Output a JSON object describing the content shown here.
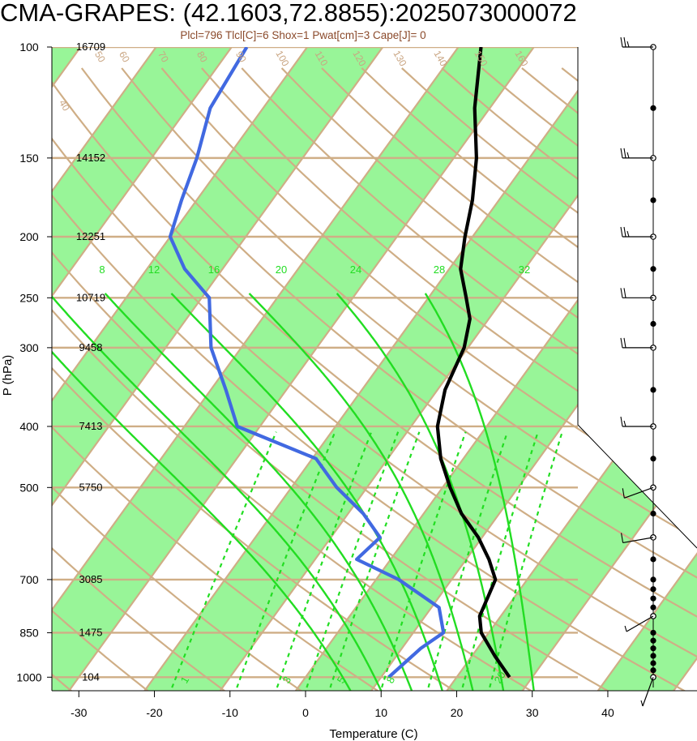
{
  "chart_data": {
    "type": "line",
    "title": "CMA-GRAPES: (42.1603,72.8855):2025073000072",
    "subtitle": "Plcl=796 Tlcl[C]=6 Shox=1 Pwat[cm]=3 Cape[J]= 0",
    "xlabel": "Temperature (C)",
    "ylabel": "P (hPa)",
    "x_ticks": [
      "-30",
      "-20",
      "-10",
      "0",
      "10",
      "20",
      "30",
      "40"
    ],
    "pressure_levels": [
      {
        "p": 100,
        "label": "100",
        "height": "16709"
      },
      {
        "p": 150,
        "label": "150",
        "height": "14152"
      },
      {
        "p": 200,
        "label": "200",
        "height": "12251"
      },
      {
        "p": 250,
        "label": "250",
        "height": "10719"
      },
      {
        "p": 300,
        "label": "300",
        "height": "9458"
      },
      {
        "p": 400,
        "label": "400",
        "height": "7413"
      },
      {
        "p": 500,
        "label": "500",
        "height": "5750"
      },
      {
        "p": 700,
        "label": "700",
        "height": "3085"
      },
      {
        "p": 850,
        "label": "850",
        "height": "1475"
      },
      {
        "p": 1000,
        "label": "1000",
        "height": "104"
      }
    ],
    "mixing_ratio_labels": [
      "8",
      "12",
      "16",
      "20",
      "24",
      "28",
      "32"
    ],
    "theta_labels": [
      "40",
      "50",
      "60",
      "70",
      "80",
      "90",
      "100",
      "110",
      "120",
      "130",
      "140",
      "150",
      "160"
    ],
    "theta_e_labels": [
      "30",
      "20",
      "10",
      "0",
      "-10",
      "-20",
      "-30"
    ],
    "mixing_ratio_bottom_labels": [
      "1",
      "3",
      "5",
      "8",
      "20"
    ],
    "series": [
      {
        "name": "Temperature",
        "color": "#000000",
        "points": [
          [
            27.0,
            1000
          ],
          [
            23.0,
            925
          ],
          [
            19.0,
            850
          ],
          [
            17.2,
            800
          ],
          [
            15.8,
            700
          ],
          [
            13.0,
            650
          ],
          [
            9.5,
            600
          ],
          [
            5.0,
            550
          ],
          [
            1.0,
            500
          ],
          [
            -3.0,
            450
          ],
          [
            -6.5,
            400
          ],
          [
            -9.0,
            350
          ],
          [
            -10.5,
            300
          ],
          [
            -12.5,
            270
          ],
          [
            -15.0,
            250
          ],
          [
            -18.5,
            225
          ],
          [
            -21.0,
            200
          ],
          [
            -23.5,
            175
          ],
          [
            -27.0,
            150
          ],
          [
            -32.0,
            125
          ],
          [
            -37.0,
            100
          ]
        ]
      },
      {
        "name": "Dewpoint",
        "color": "#4169e1",
        "points": [
          [
            11.0,
            1000
          ],
          [
            12.5,
            900
          ],
          [
            14.0,
            850
          ],
          [
            11.0,
            775
          ],
          [
            3.0,
            700
          ],
          [
            -4.5,
            650
          ],
          [
            -3.5,
            600
          ],
          [
            -8.0,
            550
          ],
          [
            -14.0,
            500
          ],
          [
            -19.5,
            450
          ],
          [
            -33.0,
            400
          ],
          [
            -38.0,
            350
          ],
          [
            -44.0,
            300
          ],
          [
            -49.0,
            250
          ],
          [
            -55.0,
            225
          ],
          [
            -60.0,
            200
          ],
          [
            -62.0,
            175
          ],
          [
            -64.0,
            150
          ],
          [
            -67.0,
            125
          ],
          [
            -68.0,
            100
          ]
        ]
      }
    ],
    "wind_barbs": [
      {
        "p": 100,
        "speed_kt": 25,
        "direction": 270
      },
      {
        "p": 150,
        "speed_kt": 25,
        "direction": 270
      },
      {
        "p": 200,
        "speed_kt": 25,
        "direction": 270
      },
      {
        "p": 250,
        "speed_kt": 20,
        "direction": 270
      },
      {
        "p": 300,
        "speed_kt": 20,
        "direction": 270
      },
      {
        "p": 400,
        "speed_kt": 15,
        "direction": 270
      },
      {
        "p": 500,
        "speed_kt": 10,
        "direction": 250
      },
      {
        "p": 600,
        "speed_kt": 10,
        "direction": 260
      },
      {
        "p": 800,
        "speed_kt": 5,
        "direction": 240
      },
      {
        "p": 1000,
        "speed_kt": 5,
        "direction": 200
      }
    ],
    "colors": {
      "green_band": "#98f598",
      "grid": "#cfae86",
      "mixing": "#22dd22",
      "temperature": "#000000",
      "dewpoint": "#4169e1",
      "subtitle": "#8b4a2b"
    },
    "grid": true
  }
}
